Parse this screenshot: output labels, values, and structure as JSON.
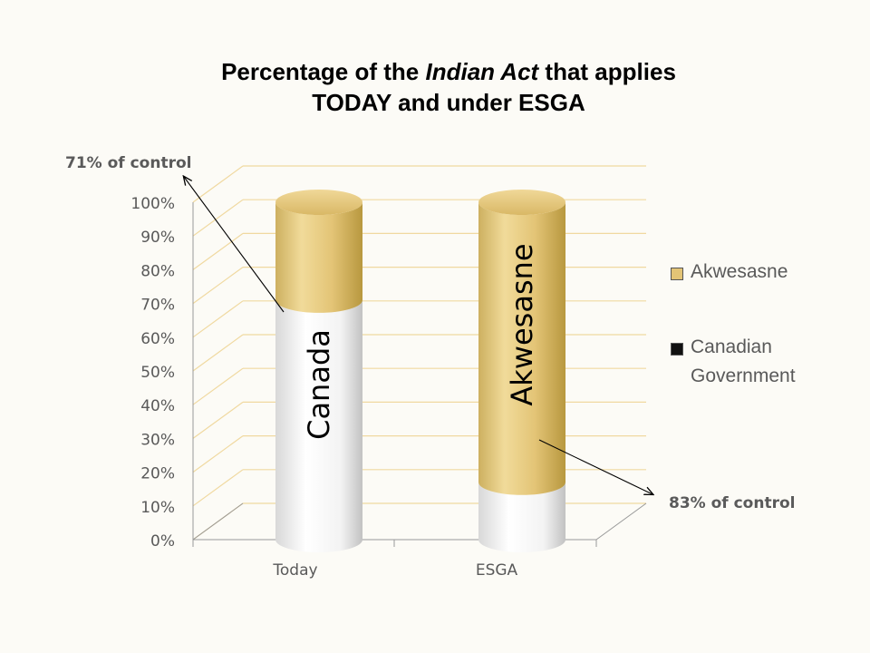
{
  "title": {
    "line1_pre": "Percentage of the ",
    "line1_italic": "Indian Act",
    "line1_post": " that applies",
    "line2": "TODAY and under ESGA"
  },
  "annotations": {
    "top": "71% of control",
    "bottom": "83% of control"
  },
  "legend": [
    {
      "label": "Akwesasne",
      "color": "#e3c476"
    },
    {
      "label": "Canadian\nGovernment",
      "color": "#111111"
    }
  ],
  "colors": {
    "akwesasne": "#e3c476",
    "canada": "#ffffff",
    "grid": "#f0d9a0"
  },
  "chart_data": {
    "type": "bar",
    "stacked": true,
    "categories": [
      "Today",
      "ESGA"
    ],
    "series": [
      {
        "name": "Canadian Government",
        "values": [
          71,
          17
        ]
      },
      {
        "name": "Akwesasne",
        "values": [
          29,
          83
        ]
      }
    ],
    "bar_labels": [
      "Canada",
      "Akwesasne"
    ],
    "ylim": [
      0,
      100
    ],
    "yticks": [
      "0%",
      "10%",
      "20%",
      "30%",
      "40%",
      "50%",
      "60%",
      "70%",
      "80%",
      "90%",
      "100%"
    ],
    "grid": true,
    "legend_position": "right"
  }
}
